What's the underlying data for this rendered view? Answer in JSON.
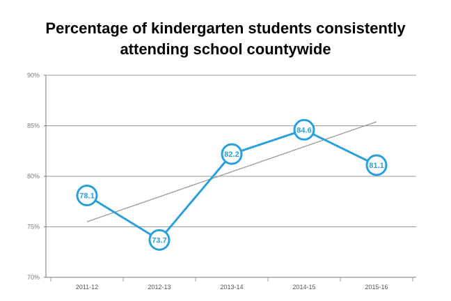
{
  "chart_data": {
    "type": "line",
    "title_lines": [
      "Percentage of kindergarten students consistently",
      "attending school countywide"
    ],
    "categories": [
      "2011-12",
      "2012-13",
      "2013-14",
      "2014-15",
      "2015-16"
    ],
    "series": [
      {
        "values": [
          78.1,
          73.7,
          82.2,
          84.6,
          81.1
        ],
        "color": "#2a9fd8"
      }
    ],
    "data_labels": [
      "78.1",
      "73.7",
      "82.2",
      "84.6",
      "81.1"
    ],
    "trendline": {
      "color": "#999999",
      "start": 75.5,
      "end": 85.4
    },
    "yticks": [
      {
        "value": 90,
        "label": "90%"
      },
      {
        "value": 85,
        "label": "85%"
      },
      {
        "value": 80,
        "label": "80%"
      },
      {
        "value": 75,
        "label": "75%"
      },
      {
        "value": 70,
        "label": "70%"
      }
    ],
    "ylim": [
      70,
      90
    ],
    "grid": true,
    "legend": "none",
    "xlabel": "",
    "ylabel": ""
  }
}
